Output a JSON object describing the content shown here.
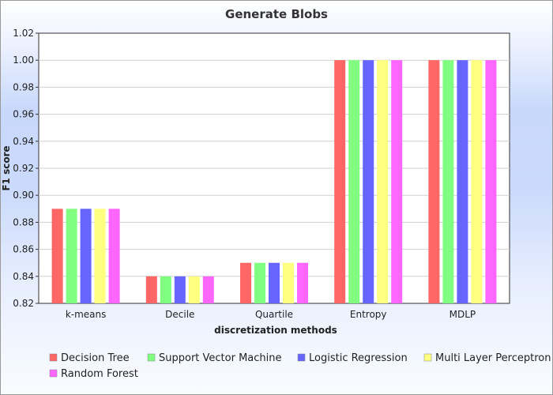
{
  "chart_data": {
    "type": "bar",
    "title": "Generate Blobs",
    "xlabel": "discretization methods",
    "ylabel": "F1 score",
    "categories": [
      "k-means",
      "Decile",
      "Quartile",
      "Entropy",
      "MDLP"
    ],
    "ylim": [
      0.82,
      1.02
    ],
    "yticks": [
      "0.82",
      "0.84",
      "0.86",
      "0.88",
      "0.90",
      "0.92",
      "0.94",
      "0.96",
      "0.98",
      "1.00",
      "1.02"
    ],
    "grid": true,
    "legend_position": "bottom",
    "series": [
      {
        "name": "Decision Tree",
        "color": "#ff6666",
        "values": [
          0.89,
          0.84,
          0.85,
          1.0,
          1.0
        ]
      },
      {
        "name": "Support Vector Machine",
        "color": "#80ff80",
        "values": [
          0.89,
          0.84,
          0.85,
          1.0,
          1.0
        ]
      },
      {
        "name": "Logistic Regression",
        "color": "#6666ff",
        "values": [
          0.89,
          0.84,
          0.85,
          1.0,
          1.0
        ]
      },
      {
        "name": "Multi Layer Perceptron",
        "color": "#ffff80",
        "values": [
          0.89,
          0.84,
          0.85,
          1.0,
          1.0
        ]
      },
      {
        "name": "Random Forest",
        "color": "#ff66ff",
        "values": [
          0.89,
          0.84,
          0.85,
          1.0,
          1.0
        ]
      }
    ]
  }
}
